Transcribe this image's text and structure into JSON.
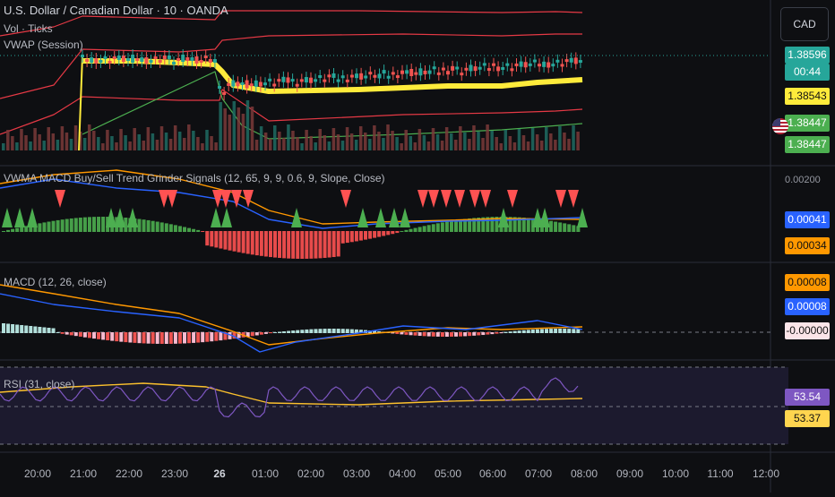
{
  "symbol_title": "U.S. Dollar / Canadian Dollar · 10 · OANDA",
  "indicators": {
    "vol": "Vol · Ticks",
    "vwap": "VWAP (Session)",
    "vwma": "VWMA MACD Buy/Sell Trend Grinder Signals (12, 65, 9, 9, 0.6, 9, Slope, Close)",
    "macd": "MACD (12, 26, close)",
    "rsi": "RSI (31, close)"
  },
  "currency": "CAD",
  "price_labels": {
    "last": "1.38596",
    "countdown": "00:44",
    "vwap": "1.38543",
    "lower_a": "1.38447",
    "lower_b": "1.38447"
  },
  "vwma_values": {
    "axis_top": "0.00200",
    "blue": "0.00041",
    "orange": "0.00034"
  },
  "macd_values": {
    "orange": "0.00008",
    "blue": "0.00008",
    "hist": "-0.00000"
  },
  "rsi_values": {
    "purple": "53.54",
    "yellow": "53.37"
  },
  "time_axis": [
    "20:00",
    "21:00",
    "22:00",
    "23:00",
    "26",
    "01:00",
    "02:00",
    "03:00",
    "04:00",
    "05:00",
    "06:00",
    "07:00",
    "08:00",
    "09:00",
    "10:00",
    "11:00",
    "12:00"
  ],
  "colors": {
    "up": "#26a69a",
    "down": "#ef5350",
    "vwap": "#ffeb3b",
    "band": "#e53945",
    "inner_band": "#4caf50",
    "macd_line": "#2962ff",
    "signal": "#ff9800",
    "rsi": "#7e57c2",
    "signal_up": "#4caf50",
    "signal_down": "#ff5252"
  }
}
